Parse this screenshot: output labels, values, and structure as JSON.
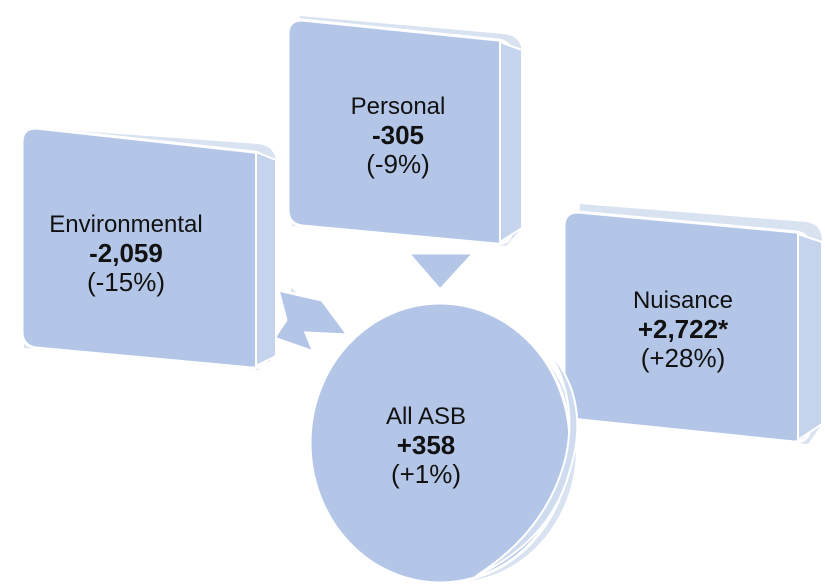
{
  "colors": {
    "fill": "#b3c6e7",
    "side": "#d9e2f1",
    "edge": "#ffffff",
    "text": "#111111"
  },
  "nodes": {
    "personal": {
      "name": "Personal",
      "change": "-305",
      "pct": "(-9%)"
    },
    "environmental": {
      "name": "Environmental",
      "change": "-2,059",
      "pct": "(-15%)"
    },
    "nuisance": {
      "name": "Nuisance",
      "change": "+2,722*",
      "pct": "(+28%)"
    },
    "all_asb": {
      "name": "All ASB",
      "change": "+358",
      "pct": "(+1%)"
    }
  }
}
